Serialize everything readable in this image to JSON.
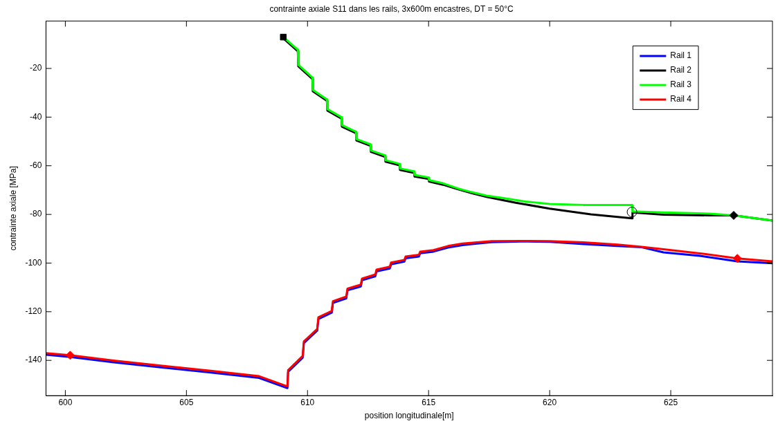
{
  "chart_data": {
    "type": "line",
    "title": "contrainte axiale S11 dans les rails, 3x600m encastres, DT = 50°C",
    "xlabel": "position longitudinale[m]",
    "ylabel": "contrainte axiale [MPa]",
    "xlim": [
      599.2,
      629.2
    ],
    "ylim": [
      -154.5,
      -0.5
    ],
    "xticks": [
      600,
      605,
      610,
      615,
      620,
      625
    ],
    "yticks": [
      -140,
      -120,
      -100,
      -80,
      -60,
      -40,
      -20
    ],
    "grid": false,
    "legend": "top right",
    "marker": "none",
    "line_style": "solid",
    "series": [
      {
        "name": "Rail 1",
        "color": "#0000ff",
        "x": [
          599.2,
          600.2,
          602,
          604,
          606,
          608,
          609.17,
          609.2,
          609.8,
          609.85,
          610.4,
          610.45,
          611,
          611.05,
          611.6,
          611.65,
          612.2,
          612.25,
          612.8,
          612.85,
          613.4,
          613.45,
          614,
          614.05,
          614.6,
          614.65,
          615.2,
          615.8,
          616.4,
          617,
          617.6,
          618.8,
          620,
          621.4,
          622.8,
          623.8,
          624.7,
          626.2,
          627.75,
          629.2
        ],
        "values": [
          -137.7,
          -138.6,
          -140.8,
          -142.9,
          -145,
          -147.2,
          -151.4,
          -144.7,
          -138.9,
          -132.9,
          -127.8,
          -123,
          -120.4,
          -116.4,
          -114.5,
          -111.2,
          -109.6,
          -107.1,
          -105.4,
          -103.4,
          -102.2,
          -100.5,
          -99.4,
          -98,
          -97.3,
          -96,
          -95.3,
          -93.6,
          -92.6,
          -92,
          -91.4,
          -91.1,
          -91.3,
          -92.2,
          -93,
          -93.5,
          -95.6,
          -97,
          -99.3,
          -100.1
        ]
      },
      {
        "name": "Rail 2",
        "color": "#000000",
        "x": [
          609,
          609.6,
          609.62,
          610.2,
          610.22,
          610.8,
          610.82,
          611.4,
          611.42,
          612,
          612.02,
          612.6,
          612.62,
          613.2,
          613.22,
          613.8,
          613.82,
          614.4,
          614.42,
          615,
          615.02,
          615.6,
          616.2,
          616.8,
          617.4,
          618.6,
          620,
          621.7,
          623.4,
          623.42,
          624.7,
          626.6,
          627.6,
          629.2
        ],
        "values": [
          -7.6,
          -12.9,
          -19.1,
          -24.3,
          -29.4,
          -33.3,
          -37.3,
          -40.6,
          -43.9,
          -46.6,
          -49.6,
          -51.8,
          -54.3,
          -56.3,
          -58.3,
          -59.8,
          -61.7,
          -62.9,
          -64.4,
          -65.4,
          -66.5,
          -67.8,
          -69.6,
          -71.3,
          -72.8,
          -75.2,
          -77.6,
          -80,
          -81.6,
          -79.2,
          -80.1,
          -80.4,
          -80.4,
          -82.5
        ]
      },
      {
        "name": "Rail 3",
        "color": "#00ff00",
        "x": [
          609,
          609.6,
          609.62,
          610.2,
          610.22,
          610.8,
          610.82,
          611.4,
          611.42,
          612,
          612.02,
          612.6,
          612.62,
          613.2,
          613.22,
          613.8,
          613.82,
          614.4,
          614.42,
          615,
          615.02,
          615.6,
          616.2,
          616.8,
          617.4,
          618.1,
          619,
          620,
          621.4,
          623.4,
          623.42,
          624.7,
          626.6,
          627.6,
          629.2
        ],
        "values": [
          -7.1,
          -12.3,
          -18.5,
          -23.7,
          -28.8,
          -32.7,
          -36.7,
          -40,
          -43.3,
          -46,
          -49,
          -51.2,
          -53.7,
          -55.7,
          -57.7,
          -59.2,
          -61.1,
          -62.3,
          -63.8,
          -64.8,
          -65.9,
          -67.2,
          -69.3,
          -70.9,
          -72.3,
          -73.3,
          -74.7,
          -75.7,
          -76.1,
          -76.1,
          -78.8,
          -79.2,
          -79.7,
          -80.4,
          -82.5
        ]
      },
      {
        "name": "Rail 4",
        "color": "#ff0000",
        "x": [
          599.2,
          600.2,
          602,
          604,
          606,
          608,
          609.17,
          609.2,
          609.8,
          609.85,
          610.4,
          610.45,
          611,
          611.05,
          611.6,
          611.65,
          612.2,
          612.25,
          612.8,
          612.85,
          613.4,
          613.45,
          614,
          614.05,
          614.6,
          614.65,
          615.2,
          615.8,
          616.4,
          617,
          617.6,
          618.8,
          620,
          621.4,
          622.8,
          623.8,
          624.7,
          626.2,
          627.75,
          629.2
        ],
        "values": [
          -137,
          -137.9,
          -140.1,
          -142.2,
          -144.3,
          -146.5,
          -150.7,
          -144,
          -138.2,
          -132.2,
          -127.1,
          -122.3,
          -119.7,
          -115.7,
          -113.8,
          -110.5,
          -108.9,
          -106.4,
          -104.7,
          -102.7,
          -101.5,
          -99.8,
          -98.7,
          -97.3,
          -96.6,
          -95.3,
          -94.7,
          -93,
          -92,
          -91.5,
          -91,
          -90.9,
          -91,
          -91.5,
          -92.4,
          -93.3,
          -94.3,
          -96,
          -98.1,
          -99.3
        ]
      },
      {
        "type": "scatter",
        "color": "#ff0000",
        "marker": "diamond",
        "x": [
          600.2,
          627.75
        ],
        "values": [
          -137.9,
          -98.1
        ]
      },
      {
        "type": "scatter",
        "color": "#000000",
        "marker": "square",
        "x": [
          609
        ],
        "values": [
          -7.1
        ]
      },
      {
        "type": "scatter",
        "color": "#000000",
        "marker": "diamond",
        "x": [
          627.6
        ],
        "values": [
          -80.4
        ]
      },
      {
        "type": "scatter",
        "color": "#000000",
        "marker": "circle",
        "x": [
          623.4
        ],
        "values": [
          -79
        ]
      }
    ]
  }
}
